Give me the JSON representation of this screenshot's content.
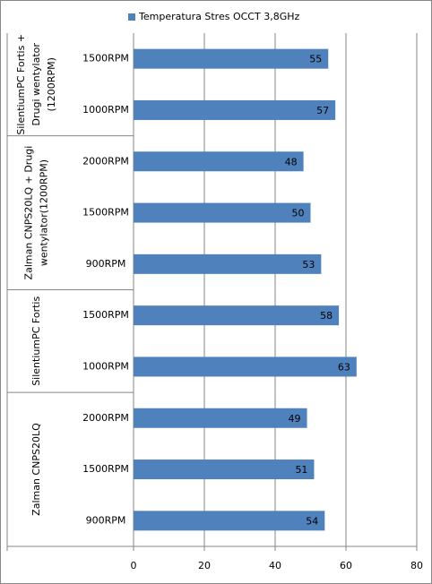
{
  "chart_data": {
    "type": "bar",
    "orientation": "horizontal",
    "series": [
      {
        "name": "Temperatura Stres OCCT 3,8GHz",
        "color": "#4f81bd",
        "values": [
          55,
          57,
          48,
          50,
          53,
          58,
          63,
          49,
          51,
          54
        ]
      }
    ],
    "category_groups": [
      {
        "label": [
          "SilentiumPC Fortis +",
          "Drugi wentylator",
          "(1200RPM)"
        ],
        "categories": [
          "1500RPM",
          "1000RPM"
        ]
      },
      {
        "label": [
          "Zalman CNPS20LQ + Drugi",
          "wentylator(1200RPM)"
        ],
        "categories": [
          "2000RPM",
          "1500RPM",
          "900RPM"
        ]
      },
      {
        "label": [
          "SilentiumPC Fortis"
        ],
        "categories": [
          "1500RPM",
          "1000RPM"
        ]
      },
      {
        "label": [
          "Zalman CNPS20LQ"
        ],
        "categories": [
          "2000RPM",
          "1500RPM",
          "900RPM"
        ]
      }
    ],
    "xlim": [
      0,
      80
    ],
    "xticks": [
      0,
      20,
      40,
      60,
      80
    ],
    "grid": true,
    "legend": "top"
  }
}
